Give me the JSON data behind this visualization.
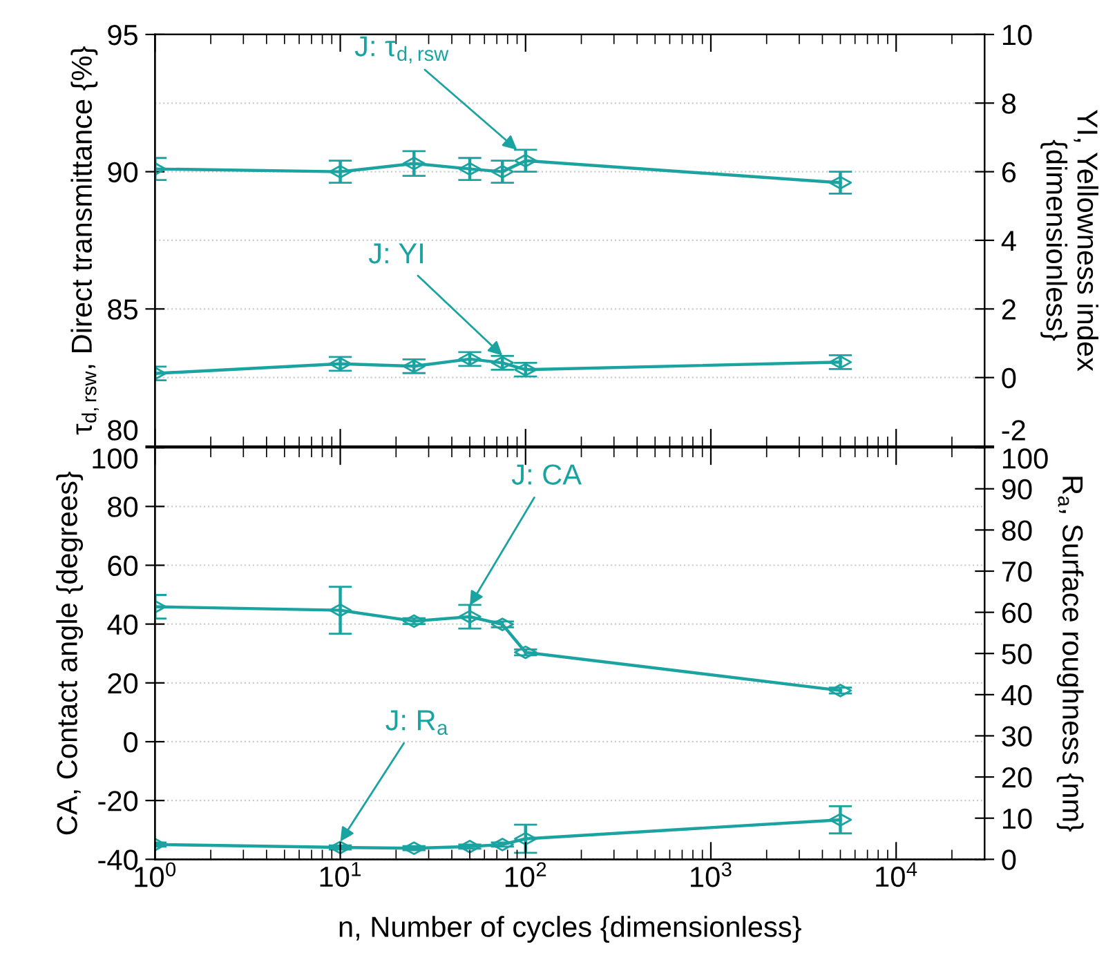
{
  "chart_data": [
    {
      "type": "line",
      "ylabel": "τ$_{d,rsw}$, Direct transmittance {%}",
      "y2label": "YI, Yellowness index\n{dimensionless}",
      "x": [
        1,
        10,
        25,
        50,
        75,
        100,
        5000
      ],
      "series": [
        {
          "color": "#1aa3a0",
          "values": [
            90.1,
            90.0,
            90.3,
            90.1,
            90.0,
            90.4,
            89.6
          ],
          "errors": [
            0.4,
            0.4,
            0.45,
            0.4,
            0.4,
            0.4,
            0.4
          ]
        },
        {
          "color": "#1aa3a0",
          "axis": "y2",
          "values": [
            0.12,
            0.4,
            0.33,
            0.54,
            0.43,
            0.23,
            0.45
          ],
          "errors": [
            0.2,
            0.2,
            0.2,
            0.2,
            0.2,
            0.2,
            0.2
          ]
        }
      ],
      "log": "x",
      "xlim": [
        1,
        30000
      ],
      "xticks": [
        {
          "value": 1,
          "label": null
        },
        {
          "value": 10,
          "label": null
        },
        {
          "value": 100,
          "label": null
        },
        {
          "value": 1000,
          "label": null
        },
        {
          "value": 10000,
          "label": null
        }
      ],
      "ylim": [
        80,
        95
      ],
      "yticks": [
        80,
        85,
        90,
        95
      ],
      "y2lim": [
        -2,
        10
      ],
      "y2ticks": [
        -2,
        0,
        2,
        4,
        6,
        8,
        10
      ],
      "grid": "y2",
      "marker": "diamond",
      "line_style": "solid",
      "tick_labels": "y",
      "annotations": [
        {
          "text": "J: τ$_{d,rsw}$",
          "x": 90,
          "y": 90.8
        },
        {
          "text": "J: YI",
          "x": 75,
          "y": 83.3
        }
      ]
    },
    {
      "type": "line",
      "xlabel": "n, Number of cycles {dimensionless}",
      "ylabel": "CA, Contact angle {degrees}",
      "y2label": "R$_{a}$, Surface roughness {nm}",
      "x": [
        1,
        10,
        25,
        50,
        75,
        100,
        5000
      ],
      "series": [
        {
          "color": "#1aa3a0",
          "values": [
            45.9,
            44.7,
            41.0,
            42.5,
            39.9,
            30.4,
            17.4
          ],
          "errors": [
            4,
            8,
            1,
            4,
            1,
            1,
            1
          ]
        },
        {
          "color": "#1aa3a0",
          "axis": "y2",
          "values": [
            3.6,
            2.9,
            2.7,
            3.1,
            3.6,
            5.0,
            9.6
          ],
          "errors": [
            0.5,
            0.5,
            0.5,
            0.5,
            0.5,
            3.4,
            3.3
          ]
        }
      ],
      "log": "x",
      "xlim": [
        1,
        30000
      ],
      "xticks": [
        {
          "value": 1,
          "label": "10$^{0}$"
        },
        {
          "value": 10,
          "label": "10$^{1}$"
        },
        {
          "value": 100,
          "label": "10$^{2}$"
        },
        {
          "value": 1000,
          "label": "10$^{3}$"
        },
        {
          "value": 10000,
          "label": "10$^{4}$"
        }
      ],
      "ylim": [
        -40,
        100
      ],
      "yticks": [
        -40,
        -20,
        0,
        20,
        40,
        60,
        80,
        100
      ],
      "y2lim": [
        0,
        100
      ],
      "y2ticks": [
        0,
        10,
        20,
        30,
        40,
        50,
        60,
        70,
        80,
        90,
        100
      ],
      "grid": "y",
      "marker": "diamond",
      "line_style": "solid",
      "annotations": [
        {
          "text": "J: CA",
          "x": 50,
          "y": 46.3
        },
        {
          "text": "J: R$_{a}$",
          "x": 10,
          "y": -34
        }
      ]
    }
  ]
}
